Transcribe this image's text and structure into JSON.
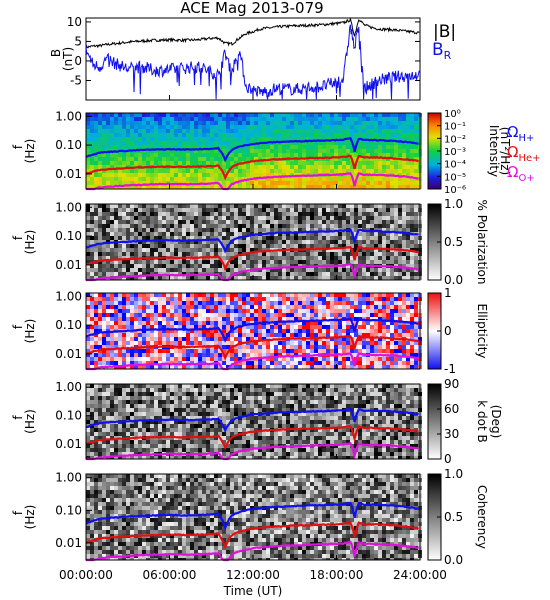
{
  "title": "ACE Mag 2013-079",
  "xaxis": {
    "label": "Time (UT)",
    "ticks": [
      "00:00:00",
      "06:00:00",
      "12:00:00",
      "18:00:00",
      "24:00:00"
    ],
    "hours": [
      0,
      6,
      12,
      18,
      24
    ]
  },
  "legend_bfield": {
    "total": "|B|",
    "radial": "B",
    "radial_sub": "R"
  },
  "legend_gyro": [
    {
      "main": "Ω",
      "sub": "H+",
      "color": "#1010ee"
    },
    {
      "main": "Ω",
      "sub": "He+",
      "color": "#e01010"
    },
    {
      "main": "Ω",
      "sub": "O+",
      "color": "#e010e0"
    }
  ],
  "chart_data": [
    {
      "type": "line",
      "panel": "B-field",
      "ylabel": "B",
      "yunit": "(nT)",
      "ylim": [
        -10,
        11
      ],
      "yticks": [
        -5,
        0,
        5,
        10
      ],
      "x_hours": [
        0,
        0.5,
        1,
        1.5,
        2,
        3,
        4,
        5,
        6,
        7,
        8,
        8.5,
        9,
        9.5,
        10,
        10.5,
        11,
        11.5,
        12,
        12.5,
        13,
        13.5,
        14,
        15,
        16,
        17,
        18,
        18.5,
        19,
        19.3,
        19.6,
        20,
        20.5,
        21,
        22,
        23,
        24
      ],
      "series": [
        {
          "name": "|B|",
          "color": "#000000",
          "values": [
            3.5,
            3.8,
            3.9,
            4.2,
            4.4,
            4.8,
            5.1,
            5.3,
            5.4,
            5.3,
            5.4,
            5.6,
            5.8,
            5.9,
            4.5,
            4.4,
            5.8,
            7.0,
            7.5,
            8.2,
            8.4,
            8.6,
            8.8,
            9.0,
            9.1,
            9.3,
            9.6,
            9.8,
            10.5,
            6.5,
            10.8,
            9.2,
            8.6,
            8.2,
            8.0,
            7.6,
            7.2
          ]
        },
        {
          "name": "B_R",
          "color": "#1010ee",
          "values": [
            3.0,
            -1.0,
            -1.5,
            0.5,
            -0.5,
            -2.0,
            -1.5,
            -2.5,
            -2.2,
            -1.8,
            -1.5,
            -2.0,
            -2.8,
            -3.5,
            2.0,
            -2.5,
            3.0,
            -6.5,
            -7.5,
            -8.0,
            -7.8,
            -7.2,
            -7.0,
            -7.3,
            -6.8,
            -6.5,
            -5.5,
            -4.5,
            9.0,
            3.0,
            9.2,
            -7.2,
            -6.0,
            -5.0,
            -4.2,
            -3.8,
            -3.4
          ]
        }
      ]
    },
    {
      "type": "heatmap",
      "panel": "Intensity",
      "ylabel": "f",
      "yunit": "(Hz)",
      "yscale": "log",
      "ylim": [
        0.003,
        1.3
      ],
      "yticks": [
        "1.00",
        "0.10",
        "0.01"
      ],
      "colorbar": {
        "label": "Intensity",
        "unit": "(nT²/Hz)",
        "ticks": [
          "10⁰",
          "10⁻¹",
          "10⁻²",
          "10⁻³",
          "10⁻⁴",
          "10⁻⁵",
          "10⁻⁶"
        ]
      }
    },
    {
      "type": "heatmap",
      "panel": "Polarization",
      "ylabel": "f",
      "yunit": "(Hz)",
      "yscale": "log",
      "ylim": [
        0.003,
        1.3
      ],
      "yticks": [
        "1.00",
        "0.10",
        "0.01"
      ],
      "colorbar": {
        "label": "% Polarization",
        "unit": "",
        "ticks": [
          "1.0",
          "0.5",
          "0.0"
        ]
      }
    },
    {
      "type": "heatmap",
      "panel": "Ellipticity",
      "ylabel": "f",
      "yunit": "(Hz)",
      "yscale": "log",
      "ylim": [
        0.003,
        1.3
      ],
      "yticks": [
        "1.00",
        "0.10",
        "0.01"
      ],
      "colorbar": {
        "label": "Ellipticity",
        "unit": "",
        "ticks": [
          "1",
          "0",
          "-1"
        ]
      }
    },
    {
      "type": "heatmap",
      "panel": "k dot B",
      "ylabel": "f",
      "yunit": "(Hz)",
      "yscale": "log",
      "ylim": [
        0.003,
        1.3
      ],
      "yticks": [
        "1.00",
        "0.10",
        "0.01"
      ],
      "colorbar": {
        "label": "k dot B",
        "unit": "(Deg)",
        "ticks": [
          "90",
          "60",
          "30",
          "0"
        ]
      }
    },
    {
      "type": "heatmap",
      "panel": "Coherency",
      "ylabel": "f",
      "yunit": "(Hz)",
      "yscale": "log",
      "ylim": [
        0.003,
        1.3
      ],
      "yticks": [
        "1.00",
        "0.10",
        "0.01"
      ],
      "colorbar": {
        "label": "Coherency",
        "unit": "",
        "ticks": [
          "1.0",
          "0.5",
          "0.0"
        ]
      }
    }
  ],
  "gyrofrequency_hz": {
    "x_hours": [
      0,
      1,
      2,
      3,
      4,
      5,
      6,
      7,
      8,
      9,
      9.5,
      10,
      10.5,
      11,
      11.5,
      12,
      13,
      14,
      15,
      16,
      17,
      18,
      18.5,
      19,
      19.3,
      19.6,
      20,
      21,
      22,
      23,
      24
    ],
    "H+": [
      0.04,
      0.055,
      0.06,
      0.064,
      0.068,
      0.07,
      0.072,
      0.07,
      0.072,
      0.074,
      0.078,
      0.03,
      0.07,
      0.088,
      0.1,
      0.11,
      0.122,
      0.13,
      0.135,
      0.14,
      0.145,
      0.15,
      0.155,
      0.17,
      0.06,
      0.165,
      0.15,
      0.148,
      0.14,
      0.128,
      0.11
    ],
    "He+": [
      0.01,
      0.014,
      0.015,
      0.016,
      0.017,
      0.0175,
      0.018,
      0.0175,
      0.018,
      0.0185,
      0.0195,
      0.0075,
      0.0175,
      0.022,
      0.025,
      0.0275,
      0.0305,
      0.0325,
      0.034,
      0.035,
      0.036,
      0.0375,
      0.039,
      0.042,
      0.015,
      0.041,
      0.0375,
      0.037,
      0.035,
      0.032,
      0.0275
    ],
    "O+": [
      0.0025,
      0.0034,
      0.0037,
      0.004,
      0.0042,
      0.0044,
      0.0045,
      0.0044,
      0.0045,
      0.0046,
      0.0049,
      0.0019,
      0.0044,
      0.0055,
      0.0062,
      0.0069,
      0.0076,
      0.0081,
      0.0084,
      0.0088,
      0.0091,
      0.0094,
      0.0097,
      0.0106,
      0.0038,
      0.0103,
      0.0094,
      0.0092,
      0.0088,
      0.008,
      0.0069
    ]
  }
}
